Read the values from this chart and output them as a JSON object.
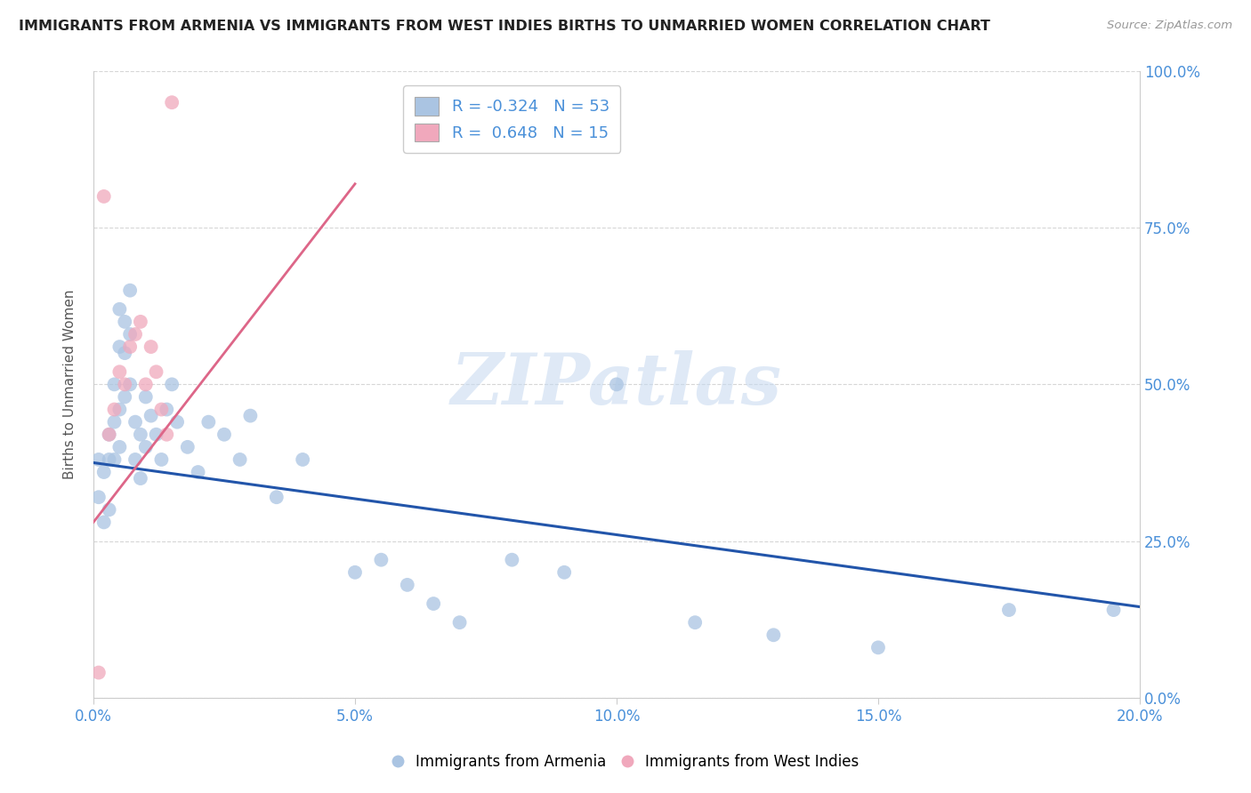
{
  "title": "IMMIGRANTS FROM ARMENIA VS IMMIGRANTS FROM WEST INDIES BIRTHS TO UNMARRIED WOMEN CORRELATION CHART",
  "source": "Source: ZipAtlas.com",
  "ylabel": "Births to Unmarried Women",
  "xlabel_ticks": [
    "0.0%",
    "5.0%",
    "10.0%",
    "15.0%",
    "20.0%"
  ],
  "ylabel_ticks": [
    "0.0%",
    "25.0%",
    "50.0%",
    "75.0%",
    "100.0%"
  ],
  "xlim": [
    0.0,
    0.2
  ],
  "ylim": [
    0.0,
    1.0
  ],
  "watermark": "ZIPatlas",
  "legend_blue_r": "R = -0.324",
  "legend_blue_n": "N = 53",
  "legend_pink_r": "R =  0.648",
  "legend_pink_n": "N = 15",
  "blue_color": "#aac4e2",
  "pink_color": "#f0a8bc",
  "blue_line_color": "#2255aa",
  "pink_line_color": "#dd6688",
  "title_color": "#222222",
  "axis_label_color": "#4a90d9",
  "background_color": "#ffffff",
  "grid_color": "#cccccc",
  "armenia_x": [
    0.001,
    0.001,
    0.002,
    0.002,
    0.003,
    0.003,
    0.003,
    0.004,
    0.004,
    0.004,
    0.005,
    0.005,
    0.005,
    0.005,
    0.006,
    0.006,
    0.006,
    0.007,
    0.007,
    0.007,
    0.008,
    0.008,
    0.009,
    0.009,
    0.01,
    0.01,
    0.011,
    0.012,
    0.013,
    0.014,
    0.015,
    0.016,
    0.018,
    0.02,
    0.022,
    0.025,
    0.028,
    0.03,
    0.035,
    0.04,
    0.05,
    0.055,
    0.06,
    0.065,
    0.07,
    0.08,
    0.09,
    0.1,
    0.115,
    0.13,
    0.15,
    0.175,
    0.195
  ],
  "armenia_y": [
    0.38,
    0.32,
    0.36,
    0.28,
    0.42,
    0.38,
    0.3,
    0.5,
    0.44,
    0.38,
    0.56,
    0.62,
    0.46,
    0.4,
    0.6,
    0.55,
    0.48,
    0.65,
    0.58,
    0.5,
    0.44,
    0.38,
    0.42,
    0.35,
    0.48,
    0.4,
    0.45,
    0.42,
    0.38,
    0.46,
    0.5,
    0.44,
    0.4,
    0.36,
    0.44,
    0.42,
    0.38,
    0.45,
    0.32,
    0.38,
    0.2,
    0.22,
    0.18,
    0.15,
    0.12,
    0.22,
    0.2,
    0.5,
    0.12,
    0.1,
    0.08,
    0.14,
    0.14
  ],
  "westindies_x": [
    0.001,
    0.002,
    0.003,
    0.004,
    0.005,
    0.006,
    0.007,
    0.008,
    0.009,
    0.01,
    0.011,
    0.012,
    0.013,
    0.014,
    0.015
  ],
  "westindies_y": [
    0.04,
    0.8,
    0.42,
    0.46,
    0.52,
    0.5,
    0.56,
    0.58,
    0.6,
    0.5,
    0.56,
    0.52,
    0.46,
    0.42,
    0.95
  ],
  "blue_line_x0": 0.0,
  "blue_line_y0": 0.375,
  "blue_line_x1": 0.2,
  "blue_line_y1": 0.145,
  "pink_line_x0": 0.0,
  "pink_line_y0": 0.28,
  "pink_line_x1": 0.05,
  "pink_line_y1": 0.82
}
